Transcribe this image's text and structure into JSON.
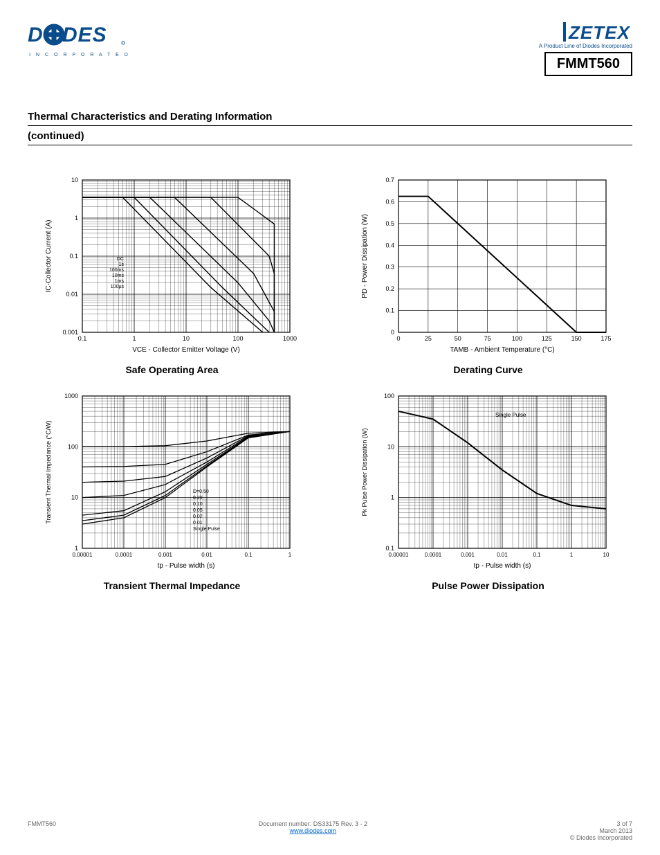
{
  "header": {
    "diodes_main": "DIODES",
    "diodes_sub": "I N C O R P O R A T E D",
    "zetex": "ZETEX",
    "product_family": "A Product Line of Diodes Incorporated",
    "part_number": "FMMT560"
  },
  "section": {
    "title": "Thermal Characteristics and Derating Information",
    "continued": "(continued)"
  },
  "soa_chart": {
    "type": "line",
    "title": "Safe Operating Area",
    "xlabel": "VCE - Collector Emitter Voltage (V)",
    "ylabel": "IC-Collector Current (A)",
    "xscale": "log",
    "yscale": "log",
    "xlim": [
      0.1,
      1000
    ],
    "ylim": [
      0.001,
      10
    ],
    "xticks": [
      0.1,
      1,
      10,
      100,
      1000
    ],
    "yticks": [
      0.001,
      0.01,
      0.1,
      1,
      10
    ],
    "xtick_labels": [
      "0.1",
      "1",
      "10",
      "100",
      "1000"
    ],
    "ytick_labels": [
      "0.001",
      "0.01",
      "0.1",
      "1",
      "10"
    ],
    "curve_labels": [
      "DC",
      "1s",
      "100ms",
      "10ms",
      "1ms",
      "100µs"
    ],
    "curves": {
      "100us": [
        [
          0.1,
          3.5
        ],
        [
          0.5,
          3.5
        ],
        [
          100,
          3.5
        ],
        [
          500,
          0.7
        ],
        [
          500,
          0.001
        ]
      ],
      "1ms": [
        [
          0.1,
          3.5
        ],
        [
          0.5,
          3.5
        ],
        [
          30,
          3.5
        ],
        [
          400,
          0.1
        ],
        [
          500,
          0.035
        ],
        [
          500,
          0.001
        ]
      ],
      "10ms": [
        [
          0.1,
          3.5
        ],
        [
          0.5,
          3.5
        ],
        [
          6,
          3.5
        ],
        [
          200,
          0.035
        ],
        [
          500,
          0.0035
        ],
        [
          500,
          0.001
        ]
      ],
      "100ms": [
        [
          0.1,
          3.5
        ],
        [
          0.5,
          3.5
        ],
        [
          2,
          3.5
        ],
        [
          100,
          0.02
        ],
        [
          400,
          0.002
        ],
        [
          500,
          0.001
        ]
      ],
      "1s": [
        [
          0.1,
          3.5
        ],
        [
          0.5,
          3.5
        ],
        [
          1,
          3.5
        ],
        [
          50,
          0.015
        ],
        [
          400,
          0.001
        ]
      ],
      "DC": [
        [
          0.1,
          3.5
        ],
        [
          0.3,
          3.5
        ],
        [
          0.6,
          3.5
        ],
        [
          30,
          0.015
        ],
        [
          300,
          0.001
        ]
      ]
    },
    "background_color": "#ffffff",
    "grid_color": "#000000",
    "line_color": "#000000"
  },
  "derating_chart": {
    "type": "line",
    "title": "Derating Curve",
    "xlabel": "TAMB - Ambient Temperature (°C)",
    "ylabel": "PD - Power Dissipation (W)",
    "xscale": "linear",
    "yscale": "linear",
    "xlim": [
      0,
      175
    ],
    "ylim": [
      0,
      0.7
    ],
    "xticks": [
      0,
      25,
      50,
      75,
      100,
      125,
      150,
      175
    ],
    "yticks": [
      0,
      0.1,
      0.2,
      0.3,
      0.4,
      0.5,
      0.6,
      0.7
    ],
    "data": [
      [
        0,
        0.625
      ],
      [
        25,
        0.625
      ],
      [
        150,
        0.0
      ],
      [
        175,
        0.0
      ]
    ],
    "background_color": "#ffffff",
    "grid_color": "#000000",
    "line_color": "#000000"
  },
  "transient_chart": {
    "type": "line",
    "title": "Transient Thermal Impedance",
    "xlabel": "tp - Pulse width (s)",
    "ylabel": "Transient Thermal Impedance (°C/W)",
    "xscale": "log",
    "yscale": "log",
    "xlim": [
      1e-05,
      1
    ],
    "ylim": [
      1,
      1000
    ],
    "xticks": [
      1e-05,
      0.0001,
      0.001,
      0.01,
      0.1,
      1
    ],
    "yticks": [
      1,
      10,
      100,
      1000
    ],
    "duty_labels": [
      "D=0.50",
      "0.20",
      "0.10",
      "0.05",
      "0.02",
      "0.01",
      "Single Pulse"
    ],
    "curves": {
      "Single": [
        [
          1e-05,
          3
        ],
        [
          0.0001,
          4
        ],
        [
          0.001,
          10
        ],
        [
          0.01,
          40
        ],
        [
          0.1,
          150
        ],
        [
          1,
          200
        ]
      ],
      "0.01": [
        [
          1e-05,
          3.5
        ],
        [
          0.0001,
          4.5
        ],
        [
          0.001,
          11
        ],
        [
          0.01,
          42
        ],
        [
          0.1,
          152
        ],
        [
          1,
          200
        ]
      ],
      "0.02": [
        [
          1e-05,
          4.5
        ],
        [
          0.0001,
          5.5
        ],
        [
          0.001,
          13
        ],
        [
          0.01,
          45
        ],
        [
          0.1,
          155
        ],
        [
          1,
          200
        ]
      ],
      "0.05": [
        [
          1e-05,
          10
        ],
        [
          0.0001,
          11
        ],
        [
          0.001,
          18
        ],
        [
          0.01,
          50
        ],
        [
          0.1,
          160
        ],
        [
          1,
          200
        ]
      ],
      "0.10": [
        [
          1e-05,
          20
        ],
        [
          0.0001,
          21
        ],
        [
          0.001,
          26
        ],
        [
          0.01,
          60
        ],
        [
          0.1,
          165
        ],
        [
          1,
          200
        ]
      ],
      "0.20": [
        [
          1e-05,
          40
        ],
        [
          0.0001,
          41
        ],
        [
          0.001,
          45
        ],
        [
          0.01,
          80
        ],
        [
          0.1,
          170
        ],
        [
          1,
          200
        ]
      ],
      "0.50": [
        [
          1e-05,
          100
        ],
        [
          0.0001,
          101
        ],
        [
          0.001,
          105
        ],
        [
          0.01,
          130
        ],
        [
          0.1,
          185
        ],
        [
          1,
          200
        ]
      ]
    },
    "background_color": "#ffffff",
    "grid_color": "#000000",
    "line_color": "#000000"
  },
  "pulse_power_chart": {
    "type": "line",
    "title": "Pulse Power Dissipation",
    "xlabel": "tp - Pulse width (s)",
    "ylabel": "Pk Pulse Power Dissipation (W)",
    "xscale": "log",
    "yscale": "log",
    "xlim": [
      1e-05,
      10
    ],
    "ylim": [
      0.1,
      100
    ],
    "xticks": [
      1e-05,
      0.0001,
      0.001,
      0.01,
      0.1,
      1,
      10
    ],
    "yticks": [
      0.1,
      1,
      10,
      100
    ],
    "curve_label": "Single Pulse",
    "data": [
      [
        1e-05,
        50
      ],
      [
        0.0001,
        35
      ],
      [
        0.001,
        12
      ],
      [
        0.01,
        3.5
      ],
      [
        0.1,
        1.2
      ],
      [
        1,
        0.7
      ],
      [
        10,
        0.6
      ]
    ],
    "background_color": "#ffffff",
    "grid_color": "#000000",
    "line_color": "#000000"
  },
  "footer": {
    "left": "FMMT560",
    "center_line1": "Document number: DS33175 Rev. 3 - 2",
    "center_line2": "www.diodes.com",
    "right_line1": "3 of 7",
    "right_line2": "March 2013",
    "right_line3": "© Diodes Incorporated"
  }
}
